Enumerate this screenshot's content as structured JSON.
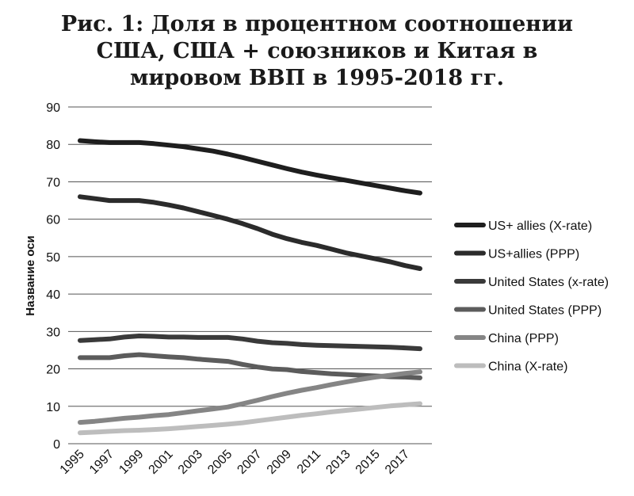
{
  "chart_data": {
    "type": "line",
    "title": "Рис. 1: Доля в процентном соотношении\nСША, США + союзников и Китая в\nмировом ВВП в 1995-2018 гг.",
    "xlabel": "",
    "ylabel": "Название оси",
    "ylim": [
      0,
      90
    ],
    "yticks": [
      0,
      10,
      20,
      30,
      40,
      50,
      60,
      70,
      80,
      90
    ],
    "xticks": [
      1995,
      1997,
      1999,
      2001,
      2003,
      2005,
      2007,
      2009,
      2011,
      2013,
      2015,
      2017
    ],
    "grid": true,
    "legend_position": "right",
    "x": [
      1995,
      1996,
      1997,
      1998,
      1999,
      2000,
      2001,
      2002,
      2003,
      2004,
      2005,
      2006,
      2007,
      2008,
      2009,
      2010,
      2011,
      2012,
      2013,
      2014,
      2015,
      2016,
      2017,
      2018
    ],
    "series": [
      {
        "name": "US+ allies (X-rate)",
        "color": "#1e1e1e",
        "values": [
          81,
          80.7,
          80.5,
          80.5,
          80.5,
          80.2,
          79.8,
          79.4,
          78.8,
          78.2,
          77.4,
          76.5,
          75.5,
          74.5,
          73.5,
          72.6,
          71.8,
          71.1,
          70.4,
          69.7,
          69.0,
          68.3,
          67.6,
          67.0
        ]
      },
      {
        "name": "US+allies (PPP)",
        "color": "#2b2b2b",
        "values": [
          66,
          65.5,
          65.0,
          65.0,
          65.0,
          64.5,
          63.8,
          63.0,
          62.0,
          61.0,
          60.0,
          58.8,
          57.5,
          56.0,
          54.8,
          53.8,
          53.0,
          52.0,
          51.0,
          50.2,
          49.4,
          48.6,
          47.6,
          46.8
        ]
      },
      {
        "name": "United States (x-rate)",
        "color": "#3a3a3a",
        "values": [
          27.6,
          27.8,
          28.0,
          28.5,
          28.8,
          28.7,
          28.5,
          28.5,
          28.4,
          28.4,
          28.4,
          28.0,
          27.4,
          27.0,
          26.8,
          26.5,
          26.3,
          26.2,
          26.1,
          26.0,
          25.9,
          25.8,
          25.6,
          25.4
        ]
      },
      {
        "name": "United States (PPP)",
        "color": "#5c5c5c",
        "values": [
          23.0,
          23.0,
          23.0,
          23.5,
          23.8,
          23.5,
          23.2,
          23.0,
          22.6,
          22.3,
          22.0,
          21.2,
          20.5,
          20.0,
          19.8,
          19.3,
          19.0,
          18.7,
          18.5,
          18.3,
          18.1,
          17.9,
          17.8,
          17.6
        ]
      },
      {
        "name": "China (PPP)",
        "color": "#858585",
        "values": [
          5.7,
          6.0,
          6.4,
          6.8,
          7.1,
          7.5,
          7.8,
          8.3,
          8.8,
          9.3,
          9.8,
          10.7,
          11.6,
          12.6,
          13.5,
          14.3,
          15.0,
          15.8,
          16.5,
          17.2,
          17.8,
          18.3,
          18.8,
          19.2
        ]
      },
      {
        "name": "China (X-rate)",
        "color": "#bdbdbd",
        "values": [
          2.9,
          3.1,
          3.3,
          3.5,
          3.6,
          3.8,
          4.0,
          4.3,
          4.6,
          4.9,
          5.2,
          5.6,
          6.1,
          6.6,
          7.1,
          7.6,
          8.0,
          8.5,
          8.9,
          9.3,
          9.7,
          10.1,
          10.4,
          10.7
        ]
      }
    ]
  }
}
